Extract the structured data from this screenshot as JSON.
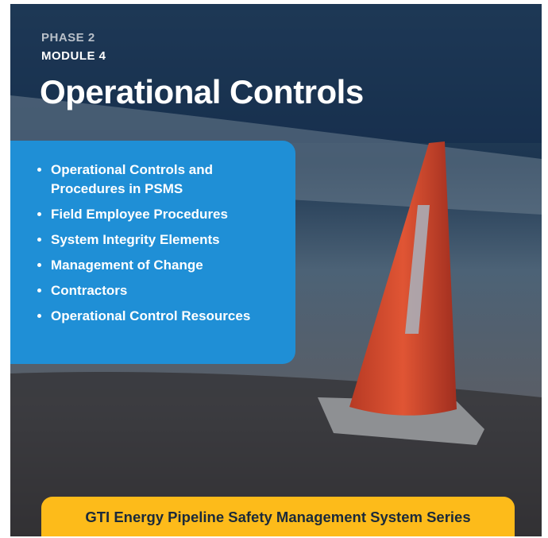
{
  "header": {
    "phase": "PHASE 2",
    "module": "MODULE 4",
    "title": "Operational Controls"
  },
  "topics": [
    "Operational Controls and Procedures in PSMS",
    "Field Employee Procedures",
    "System Integrity Elements",
    "Management of Change",
    "Contractors",
    "Operational Control Resources"
  ],
  "footer": {
    "series": "GTI Energy Pipeline Safety Management System Series"
  }
}
